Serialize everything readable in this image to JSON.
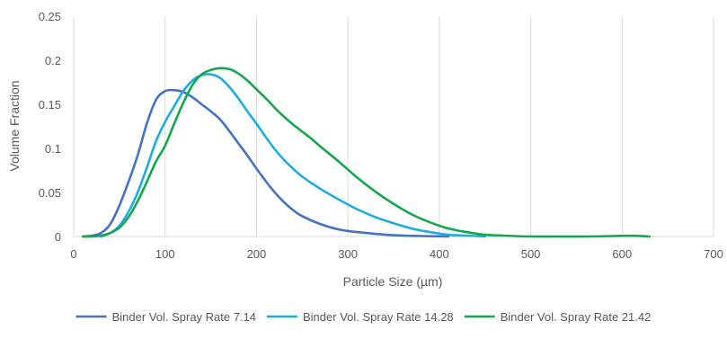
{
  "chart_data": {
    "type": "line",
    "title": "",
    "xlabel": "Particle Size (µm)",
    "ylabel": "Volume Fraction",
    "xlim": [
      0,
      700
    ],
    "ylim": [
      0,
      0.25
    ],
    "x_ticks": [
      0,
      100,
      200,
      300,
      400,
      500,
      600,
      700
    ],
    "y_ticks": [
      0,
      0.05,
      0.1,
      0.15,
      0.2,
      0.25
    ],
    "x_tick_labels": [
      "0",
      "100",
      "200",
      "300",
      "400",
      "500",
      "600",
      "700"
    ],
    "y_tick_labels": [
      "0",
      "0.05",
      "0.1",
      "0.15",
      "0.2",
      "0.25"
    ],
    "grid": "vertical",
    "legend_position": "bottom",
    "series": [
      {
        "name": "Binder Vol. Spray Rate 7.14",
        "color": "#4472C4",
        "x": [
          10,
          20,
          30,
          40,
          50,
          60,
          70,
          80,
          90,
          100,
          110,
          120,
          130,
          140,
          150,
          160,
          170,
          180,
          190,
          200,
          210,
          220,
          230,
          240,
          250,
          270,
          290,
          310,
          330,
          350,
          380,
          410
        ],
        "y": [
          0,
          0.001,
          0.004,
          0.014,
          0.035,
          0.062,
          0.092,
          0.128,
          0.155,
          0.165,
          0.166,
          0.164,
          0.158,
          0.15,
          0.142,
          0.133,
          0.12,
          0.106,
          0.092,
          0.077,
          0.063,
          0.05,
          0.039,
          0.03,
          0.023,
          0.014,
          0.008,
          0.005,
          0.003,
          0.0015,
          0.0005,
          0
        ]
      },
      {
        "name": "Binder Vol. Spray Rate 14.28",
        "color": "#1CADE4",
        "x": [
          30,
          40,
          50,
          60,
          70,
          80,
          90,
          100,
          110,
          120,
          130,
          140,
          150,
          160,
          170,
          180,
          190,
          200,
          210,
          220,
          230,
          240,
          250,
          270,
          290,
          310,
          330,
          350,
          370,
          390,
          410,
          430,
          450
        ],
        "y": [
          0,
          0.004,
          0.012,
          0.028,
          0.05,
          0.078,
          0.108,
          0.13,
          0.148,
          0.165,
          0.177,
          0.183,
          0.184,
          0.18,
          0.17,
          0.157,
          0.142,
          0.128,
          0.113,
          0.099,
          0.087,
          0.077,
          0.068,
          0.054,
          0.042,
          0.031,
          0.022,
          0.015,
          0.009,
          0.005,
          0.002,
          0.001,
          0
        ]
      },
      {
        "name": "Binder Vol. Spray Rate 21.42",
        "color": "#12A84B",
        "x": [
          10,
          20,
          30,
          40,
          50,
          60,
          70,
          80,
          90,
          100,
          110,
          120,
          130,
          140,
          150,
          160,
          170,
          180,
          190,
          200,
          210,
          220,
          230,
          240,
          250,
          260,
          270,
          290,
          310,
          330,
          350,
          370,
          390,
          410,
          430,
          450,
          470,
          500,
          530,
          560,
          590,
          610,
          630
        ],
        "y": [
          0,
          0,
          0.001,
          0.004,
          0.01,
          0.022,
          0.04,
          0.062,
          0.085,
          0.103,
          0.128,
          0.152,
          0.172,
          0.184,
          0.189,
          0.191,
          0.19,
          0.185,
          0.177,
          0.167,
          0.157,
          0.146,
          0.136,
          0.127,
          0.119,
          0.111,
          0.102,
          0.085,
          0.067,
          0.051,
          0.037,
          0.025,
          0.016,
          0.009,
          0.005,
          0.002,
          0.001,
          0,
          0,
          0,
          0.0005,
          0.0008,
          0
        ]
      }
    ]
  }
}
